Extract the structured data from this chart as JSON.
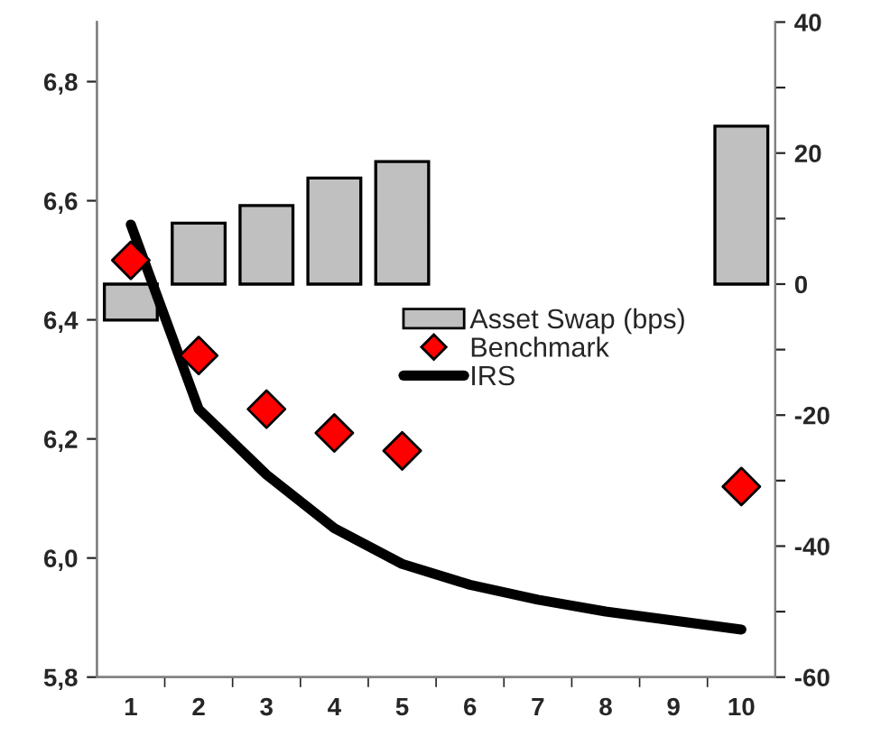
{
  "chart_data": {
    "type": "bar",
    "categories": [
      "1",
      "2",
      "3",
      "4",
      "5",
      "6",
      "7",
      "8",
      "9",
      "10"
    ],
    "series": [
      {
        "name": "Asset Swap (bps)",
        "axis": "y2",
        "color": "#c0c0c0",
        "values": [
          -5.5,
          9.3,
          12,
          16.2,
          18.7,
          null,
          null,
          null,
          null,
          24.1
        ]
      },
      {
        "name": "Benchmark",
        "type": "scatter",
        "marker": "diamond",
        "color": "#ff0000",
        "values": [
          6.5,
          6.34,
          6.25,
          6.21,
          6.18,
          null,
          null,
          null,
          null,
          6.12
        ]
      },
      {
        "name": "IRS",
        "type": "line",
        "marker": "none",
        "line_style": "solid",
        "color": "#000000",
        "values": [
          6.56,
          6.25,
          6.14,
          6.05,
          5.99,
          5.955,
          5.93,
          5.91,
          5.895,
          5.88
        ]
      }
    ],
    "ylim": [
      5.8,
      6.9
    ],
    "yticks": [
      {
        "value": 5.8,
        "label": "5,8"
      },
      {
        "value": 6.0,
        "label": "6,0"
      },
      {
        "value": 6.2,
        "label": "6,2"
      },
      {
        "value": 6.4,
        "label": "6,4"
      },
      {
        "value": 6.6,
        "label": "6,6"
      },
      {
        "value": 6.8,
        "label": "6,8"
      }
    ],
    "y2lim": [
      -60,
      40
    ],
    "y2ticks": [
      -60,
      {
        "value": -50,
        "label": null
      },
      -40,
      {
        "value": -30,
        "label": null
      },
      -20,
      {
        "value": -10,
        "label": null
      },
      0,
      {
        "value": 10,
        "label": null
      },
      20,
      {
        "value": 30,
        "label": null
      },
      40
    ],
    "grid": false,
    "legend": "center"
  }
}
